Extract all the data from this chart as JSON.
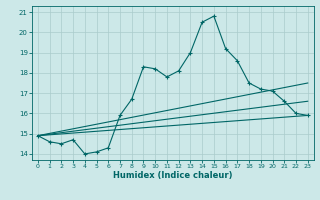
{
  "xlabel": "Humidex (Indice chaleur)",
  "bg_color": "#cce8e8",
  "grid_color": "#aacccc",
  "line_color": "#006666",
  "xlim": [
    -0.5,
    23.5
  ],
  "ylim": [
    13.7,
    21.3
  ],
  "xticks": [
    0,
    1,
    2,
    3,
    4,
    5,
    6,
    7,
    8,
    9,
    10,
    11,
    12,
    13,
    14,
    15,
    16,
    17,
    18,
    19,
    20,
    21,
    22,
    23
  ],
  "yticks": [
    14,
    15,
    16,
    17,
    18,
    19,
    20,
    21
  ],
  "series1_x": [
    0,
    1,
    2,
    3,
    4,
    5,
    6,
    7,
    8,
    9,
    10,
    11,
    12,
    13,
    14,
    15,
    16,
    17,
    18,
    19,
    20,
    21,
    22,
    23
  ],
  "series1_y": [
    14.9,
    14.6,
    14.5,
    14.7,
    14.0,
    14.1,
    14.3,
    15.9,
    16.7,
    18.3,
    18.2,
    17.8,
    18.1,
    19.0,
    20.5,
    20.8,
    19.2,
    18.6,
    17.5,
    17.2,
    17.1,
    16.6,
    16.0,
    15.9
  ],
  "line2_x": [
    0,
    23
  ],
  "line2_y": [
    14.9,
    17.5
  ],
  "line3_x": [
    0,
    23
  ],
  "line3_y": [
    14.9,
    16.6
  ],
  "line4_x": [
    0,
    23
  ],
  "line4_y": [
    14.9,
    15.9
  ]
}
